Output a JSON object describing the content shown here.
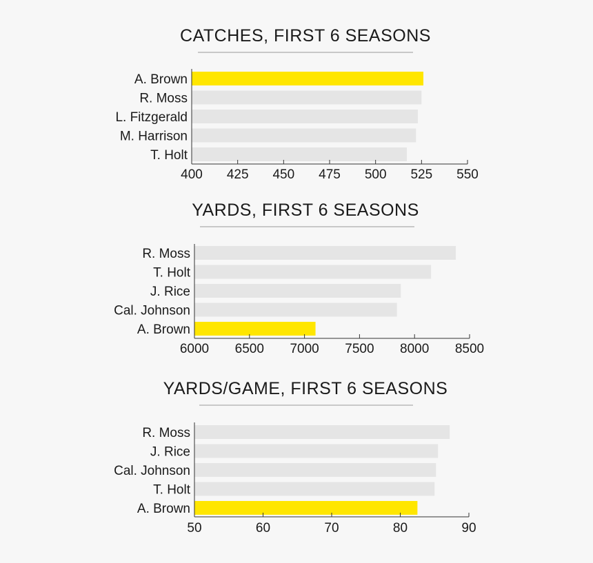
{
  "colors": {
    "background": "#f7f7f7",
    "highlight": "#ffe600",
    "bar": "#e5e5e5",
    "axis": "#333333",
    "rule": "#999999",
    "text": "#1a1a1a"
  },
  "chart_data": [
    {
      "type": "bar",
      "orientation": "horizontal",
      "title": "CATCHES, FIRST 6 SEASONS",
      "categories": [
        "A. Brown",
        "R. Moss",
        "L. Fitzgerald",
        "M. Harrison",
        "T. Holt"
      ],
      "values": [
        526,
        525,
        523,
        522,
        517
      ],
      "highlight": "A. Brown",
      "xlim": [
        400,
        550
      ],
      "xticks": [
        400,
        425,
        450,
        475,
        500,
        525,
        550
      ]
    },
    {
      "type": "bar",
      "orientation": "horizontal",
      "title": "YARDS, FIRST 6 SEASONS",
      "categories": [
        "R. Moss",
        "T. Holt",
        "J. Rice",
        "Cal. Johnson",
        "A. Brown"
      ],
      "values": [
        8375,
        8150,
        7875,
        7840,
        7100
      ],
      "highlight": "A. Brown",
      "xlim": [
        6000,
        8500
      ],
      "xticks": [
        6000,
        6500,
        7000,
        7500,
        8000,
        8500
      ]
    },
    {
      "type": "bar",
      "orientation": "horizontal",
      "title": "YARDS/GAME, FIRST 6 SEASONS",
      "categories": [
        "R. Moss",
        "J. Rice",
        "Cal. Johnson",
        "T. Holt",
        "A. Brown"
      ],
      "values": [
        87.2,
        85.5,
        85.2,
        85.0,
        82.5
      ],
      "highlight": "A. Brown",
      "xlim": [
        50,
        90
      ],
      "xticks": [
        50,
        60,
        70,
        80,
        90
      ]
    }
  ]
}
